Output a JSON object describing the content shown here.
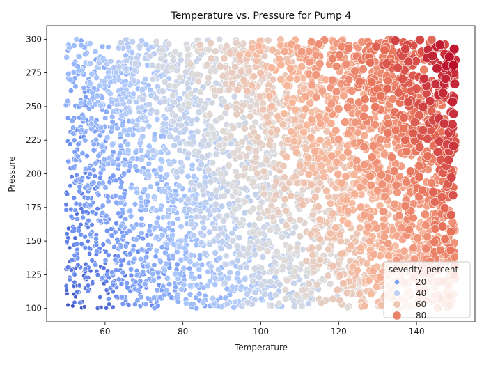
{
  "chart_data": {
    "type": "scatter",
    "title": "Temperature vs. Pressure for Pump 4",
    "xlabel": "Temperature",
    "ylabel": "Pressure",
    "xlim": [
      45,
      155
    ],
    "ylim": [
      90,
      310
    ],
    "x_ticks": [
      60,
      80,
      100,
      120,
      140
    ],
    "y_ticks": [
      100,
      125,
      150,
      175,
      200,
      225,
      250,
      275,
      300
    ],
    "x_range_of_points": [
      50,
      150
    ],
    "y_range_of_points": [
      100,
      300
    ],
    "approx_point_count": 4000,
    "hue_variable": "severity_percent",
    "size_variable": "severity_percent",
    "severity_range": [
      0,
      100
    ],
    "colormap": "coolwarm",
    "colormap_stops": [
      "#3b4cc0",
      "#6f92f3",
      "#aac7fd",
      "#dddcdc",
      "#f7b89c",
      "#e7745b",
      "#b40426"
    ],
    "legend": {
      "title": "severity_percent",
      "entries": [
        {
          "label": "20",
          "value": 20
        },
        {
          "label": "40",
          "value": 40
        },
        {
          "label": "60",
          "value": 60
        },
        {
          "label": "80",
          "value": 80
        }
      ],
      "location": "lower-right"
    },
    "trend": "severity increases mainly with temperature and slightly with pressure"
  }
}
